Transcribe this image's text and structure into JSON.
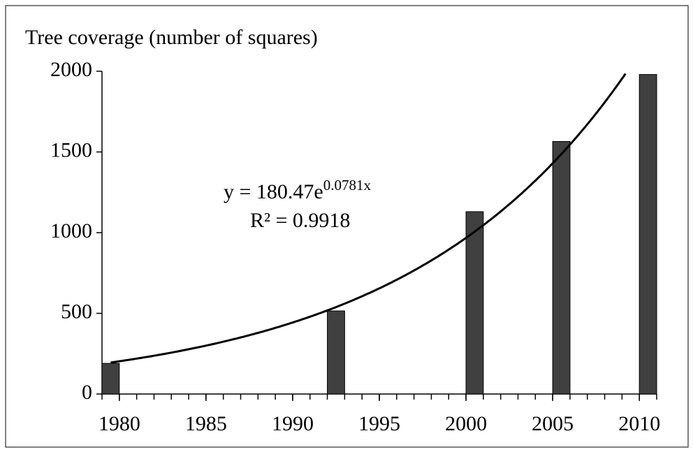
{
  "chart_data": {
    "type": "bar",
    "title": "Tree coverage (number of squares)",
    "x": [
      1979,
      1992,
      2000,
      2005,
      2010
    ],
    "values": [
      190,
      515,
      1130,
      1565,
      1980
    ],
    "color": "#404040",
    "xlim": [
      1979,
      2011
    ],
    "xticks": [
      1980,
      1985,
      1990,
      1995,
      2000,
      2005,
      2010
    ],
    "ylim": [
      0,
      2000
    ],
    "yticks": [
      0,
      500,
      1000,
      1500,
      2000
    ],
    "trendline": {
      "type": "exponential",
      "a": 180.47,
      "b": 0.0781,
      "label": "y = 180.47e",
      "exponent_label": "0.0781x",
      "r2": 0.9918,
      "r2_label": "R² = 0.9918"
    }
  }
}
